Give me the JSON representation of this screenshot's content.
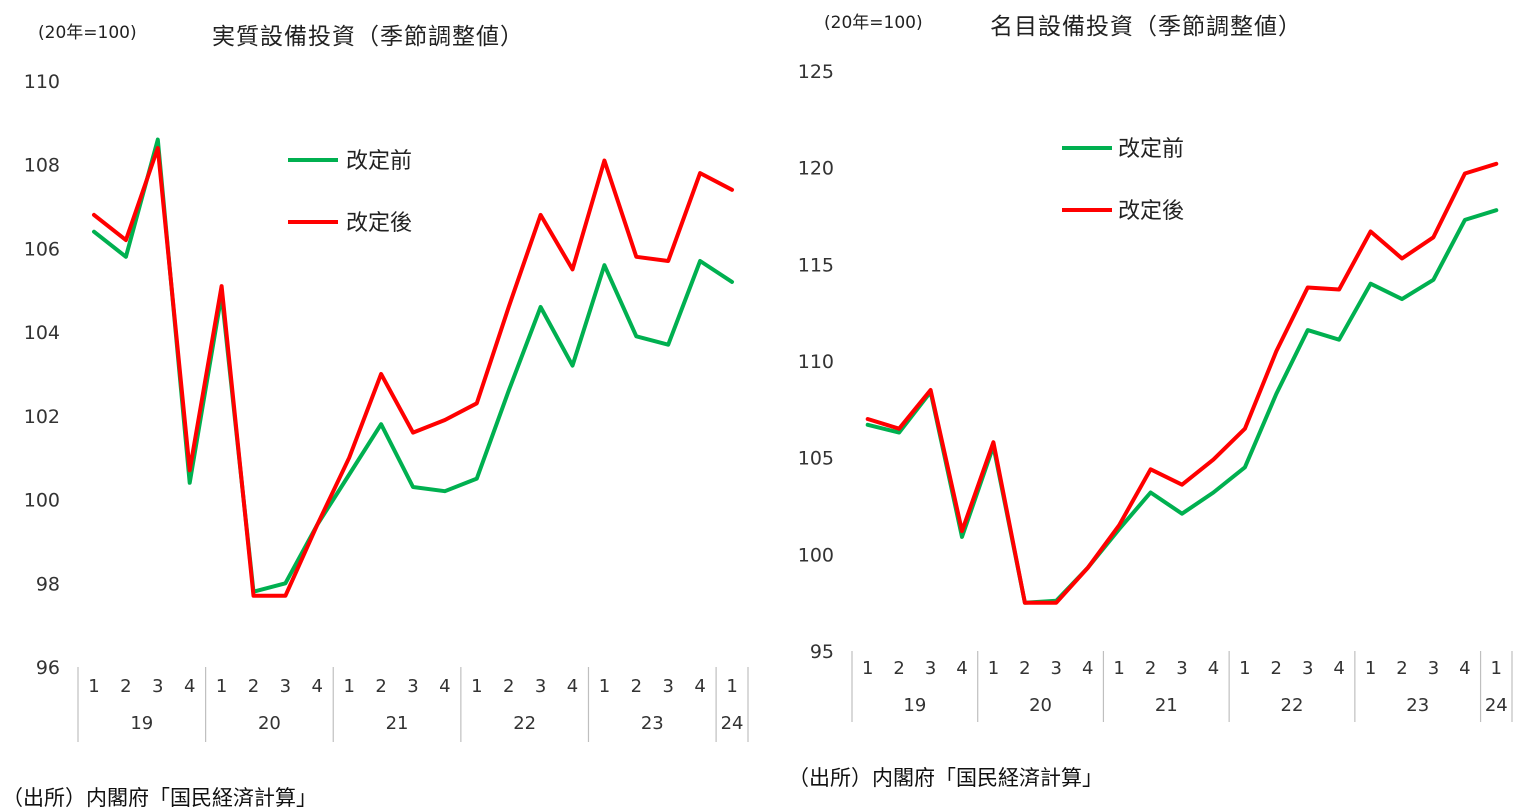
{
  "chart_data": [
    {
      "type": "line",
      "unit_note": "(20年=100)",
      "title": "実質設備投資（季節調整値）",
      "ylim": [
        96,
        110
      ],
      "yticks": [
        96,
        98,
        100,
        102,
        104,
        106,
        108,
        110
      ],
      "quarters": [
        "1",
        "2",
        "3",
        "4",
        "1",
        "2",
        "3",
        "4",
        "1",
        "2",
        "3",
        "4",
        "1",
        "2",
        "3",
        "4",
        "1",
        "2",
        "3",
        "4",
        "1"
      ],
      "years": [
        {
          "label": "19",
          "count": 4
        },
        {
          "label": "20",
          "count": 4
        },
        {
          "label": "21",
          "count": 4
        },
        {
          "label": "22",
          "count": 4
        },
        {
          "label": "23",
          "count": 4
        },
        {
          "label": "24",
          "count": 1
        }
      ],
      "series": [
        {
          "name": "改定前",
          "color": "#00b050",
          "values": [
            106.4,
            105.8,
            108.6,
            100.4,
            104.9,
            97.8,
            98.0,
            99.4,
            100.6,
            101.8,
            100.3,
            100.2,
            100.5,
            102.6,
            104.6,
            103.2,
            105.6,
            103.9,
            103.7,
            105.7,
            105.2
          ]
        },
        {
          "name": "改定後",
          "color": "#ff0000",
          "values": [
            106.8,
            106.2,
            108.4,
            100.7,
            105.1,
            97.7,
            97.7,
            99.4,
            101.0,
            103.0,
            101.6,
            101.9,
            102.3,
            104.6,
            106.8,
            105.5,
            108.1,
            105.8,
            105.7,
            107.8,
            107.4
          ]
        }
      ],
      "legend_position": "top-center"
    },
    {
      "type": "line",
      "unit_note": "(20年=100)",
      "title": "名目設備投資（季節調整値）",
      "ylim": [
        95,
        125
      ],
      "yticks": [
        95,
        100,
        105,
        110,
        115,
        120,
        125
      ],
      "quarters": [
        "1",
        "2",
        "3",
        "4",
        "1",
        "2",
        "3",
        "4",
        "1",
        "2",
        "3",
        "4",
        "1",
        "2",
        "3",
        "4",
        "1",
        "2",
        "3",
        "4",
        "1"
      ],
      "years": [
        {
          "label": "19",
          "count": 4
        },
        {
          "label": "20",
          "count": 4
        },
        {
          "label": "21",
          "count": 4
        },
        {
          "label": "22",
          "count": 4
        },
        {
          "label": "23",
          "count": 4
        },
        {
          "label": "24",
          "count": 1
        }
      ],
      "series": [
        {
          "name": "改定前",
          "color": "#00b050",
          "values": [
            106.7,
            106.3,
            108.4,
            100.9,
            105.6,
            97.5,
            97.6,
            99.3,
            101.3,
            103.2,
            102.1,
            103.2,
            104.5,
            108.3,
            111.6,
            111.1,
            114.0,
            113.2,
            114.2,
            117.3,
            117.8
          ]
        },
        {
          "name": "改定後",
          "color": "#ff0000",
          "values": [
            107.0,
            106.5,
            108.5,
            101.2,
            105.8,
            97.5,
            97.5,
            99.3,
            101.5,
            104.4,
            103.6,
            104.9,
            106.5,
            110.5,
            113.8,
            113.7,
            116.7,
            115.3,
            116.4,
            119.7,
            120.2
          ]
        }
      ],
      "legend_position": "top-center"
    }
  ],
  "sources": {
    "left": "（出所）内閣府「国民経済計算」",
    "right": "（出所）内閣府「国民経済計算」"
  }
}
